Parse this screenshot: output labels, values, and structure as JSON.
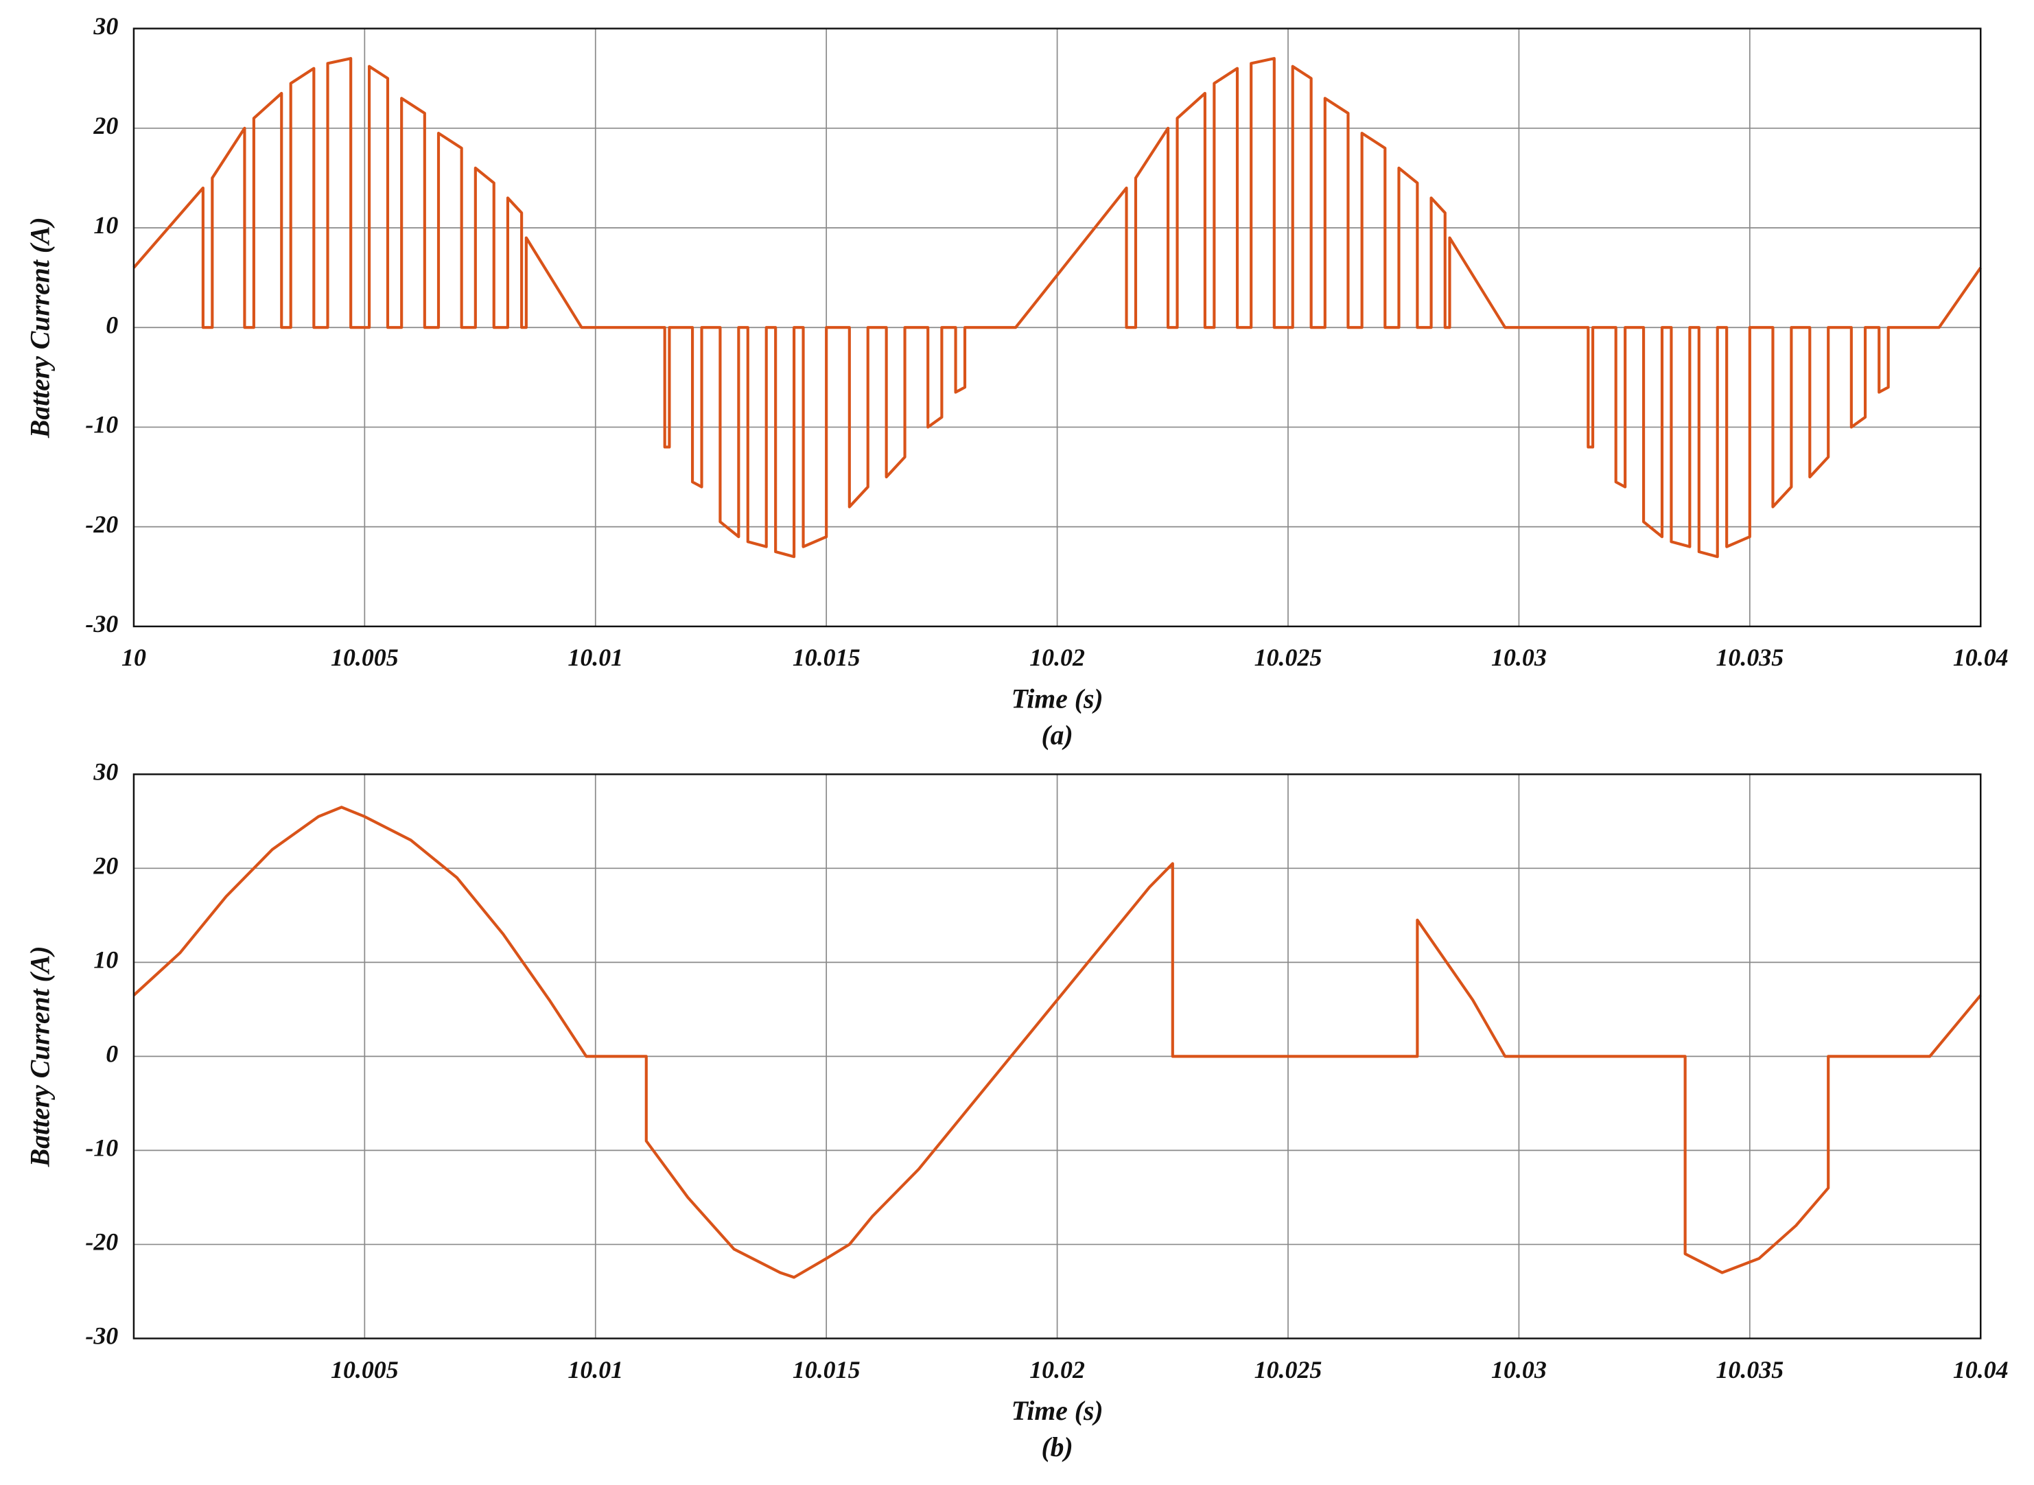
{
  "chart_data": [
    {
      "type": "line",
      "xlabel": "Time (s)",
      "ylabel": "Battery Current (A)",
      "caption": "(a)",
      "xlim": [
        10,
        10.04
      ],
      "ylim": [
        -30,
        30
      ],
      "xticks": [
        10,
        10.005,
        10.01,
        10.015,
        10.02,
        10.025,
        10.03,
        10.035,
        10.04
      ],
      "yticks": [
        -30,
        -20,
        -10,
        0,
        10,
        20,
        30
      ],
      "grid": true,
      "color": "#d95319",
      "x": [
        10,
        10.0015,
        10.0015,
        10.0017,
        10.0017,
        10.0024,
        10.0024,
        10.0026,
        10.0026,
        10.0032,
        10.0032,
        10.0034,
        10.0034,
        10.0039,
        10.0039,
        10.0042,
        10.0042,
        10.0047,
        10.0047,
        10.0051,
        10.0051,
        10.0055,
        10.0055,
        10.0058,
        10.0058,
        10.0063,
        10.0063,
        10.0066,
        10.0066,
        10.0071,
        10.0071,
        10.0074,
        10.0074,
        10.0078,
        10.0078,
        10.0081,
        10.0081,
        10.0084,
        10.0084,
        10.0085,
        10.0085,
        10.0097,
        10.0115,
        10.0115,
        10.0116,
        10.0116,
        10.0121,
        10.0121,
        10.0123,
        10.0123,
        10.0127,
        10.0127,
        10.0131,
        10.0131,
        10.0133,
        10.0133,
        10.0137,
        10.0137,
        10.0139,
        10.0139,
        10.0143,
        10.0143,
        10.0145,
        10.0145,
        10.015,
        10.015,
        10.0155,
        10.0155,
        10.0159,
        10.0159,
        10.0163,
        10.0163,
        10.0167,
        10.0167,
        10.0172,
        10.0172,
        10.0175,
        10.0175,
        10.0178,
        10.0178,
        10.018,
        10.018,
        10.0191,
        10.0215,
        10.0215,
        10.0217,
        10.0217,
        10.0224,
        10.0224,
        10.0226,
        10.0226,
        10.0232,
        10.0232,
        10.0234,
        10.0234,
        10.0239,
        10.0239,
        10.0242,
        10.0242,
        10.0247,
        10.0247,
        10.0251,
        10.0251,
        10.0255,
        10.0255,
        10.0258,
        10.0258,
        10.0263,
        10.0263,
        10.0266,
        10.0266,
        10.0271,
        10.0271,
        10.0274,
        10.0274,
        10.0278,
        10.0278,
        10.0281,
        10.0281,
        10.0284,
        10.0284,
        10.0285,
        10.0285,
        10.0297,
        10.0315,
        10.0315,
        10.0316,
        10.0316,
        10.0321,
        10.0321,
        10.0323,
        10.0323,
        10.0327,
        10.0327,
        10.0331,
        10.0331,
        10.0333,
        10.0333,
        10.0337,
        10.0337,
        10.0339,
        10.0339,
        10.0343,
        10.0343,
        10.0345,
        10.0345,
        10.035,
        10.035,
        10.0355,
        10.0355,
        10.0359,
        10.0359,
        10.0363,
        10.0363,
        10.0367,
        10.0367,
        10.0372,
        10.0372,
        10.0375,
        10.0375,
        10.0378,
        10.0378,
        10.038,
        10.038,
        10.0391,
        10.04
      ],
      "values": [
        6,
        14,
        0,
        0,
        15,
        20,
        0,
        0,
        21,
        23.5,
        0,
        0,
        24.5,
        26,
        0,
        0,
        26.5,
        27,
        0,
        0,
        26.2,
        25,
        0,
        0,
        23,
        21.5,
        0,
        0,
        19.5,
        18,
        0,
        0,
        16,
        14.5,
        0,
        0,
        13,
        11.5,
        0,
        0,
        9,
        0,
        0,
        -12,
        -12,
        0,
        0,
        -15.5,
        -16,
        0,
        0,
        -19.5,
        -21,
        0,
        0,
        -21.5,
        -22,
        0,
        0,
        -22.5,
        -23,
        0,
        0,
        -22,
        -21,
        0,
        0,
        -18,
        -16,
        0,
        0,
        -15,
        -13,
        0,
        0,
        -10,
        -9,
        0,
        0,
        -6.5,
        -6,
        0,
        0,
        14,
        0,
        0,
        15,
        20,
        0,
        0,
        21,
        23.5,
        0,
        0,
        24.5,
        26,
        0,
        0,
        26.5,
        27,
        0,
        0,
        26.2,
        25,
        0,
        0,
        23,
        21.5,
        0,
        0,
        19.5,
        18,
        0,
        0,
        16,
        14.5,
        0,
        0,
        13,
        11.5,
        0,
        0,
        9,
        0,
        0,
        -12,
        -12,
        0,
        0,
        -15.5,
        -16,
        0,
        0,
        -19.5,
        -21,
        0,
        0,
        -21.5,
        -22,
        0,
        0,
        -22.5,
        -23,
        0,
        0,
        -22,
        -21,
        0,
        0,
        -18,
        -16,
        0,
        0,
        -15,
        -13,
        0,
        0,
        -10,
        -9,
        0,
        0,
        -6.5,
        -6,
        0,
        0,
        6
      ]
    },
    {
      "type": "line",
      "xlabel": "Time (s)",
      "ylabel": "Battery Current (A)",
      "caption": "(b)",
      "xlim": [
        10,
        10.04
      ],
      "ylim": [
        -30,
        30
      ],
      "xticks": [
        10.005,
        10.01,
        10.015,
        10.02,
        10.025,
        10.03,
        10.035,
        10.04
      ],
      "yticks": [
        -30,
        -20,
        -10,
        0,
        10,
        20,
        30
      ],
      "grid": true,
      "color": "#d95319",
      "x": [
        10,
        10.001,
        10.002,
        10.003,
        10.004,
        10.0045,
        10.005,
        10.006,
        10.007,
        10.008,
        10.009,
        10.0098,
        10.0111,
        10.0111,
        10.012,
        10.013,
        10.014,
        10.0143,
        10.015,
        10.0155,
        10.016,
        10.017,
        10.018,
        10.019,
        10.02,
        10.021,
        10.022,
        10.0225,
        10.0225,
        10.0278,
        10.0278,
        10.029,
        10.0297,
        10.0336,
        10.0336,
        10.0344,
        10.0352,
        10.036,
        10.0367,
        10.0367,
        10.0389,
        10.04
      ],
      "values": [
        6.5,
        11,
        17,
        22,
        25.5,
        26.5,
        25.5,
        23,
        19,
        13,
        6,
        0,
        0,
        -9,
        -15,
        -20.5,
        -23,
        -23.5,
        -21.5,
        -20,
        -17,
        -12,
        -6,
        0,
        6,
        12,
        18,
        20.5,
        0,
        0,
        14.5,
        6,
        0,
        0,
        -21,
        -23,
        -21.5,
        -18,
        -14,
        0,
        0,
        6.5
      ]
    }
  ]
}
